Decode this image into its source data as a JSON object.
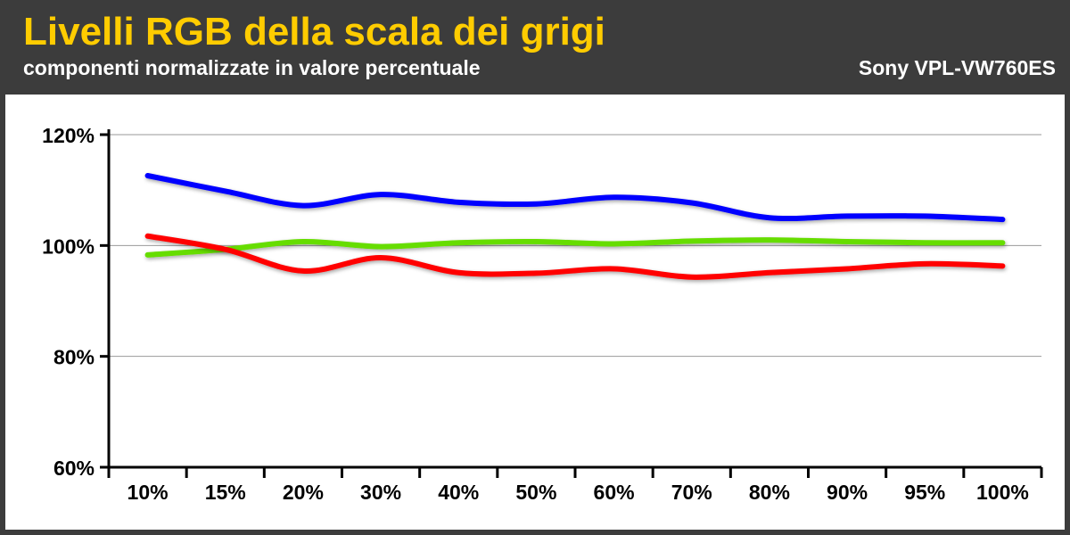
{
  "header": {
    "title": "Livelli RGB della scala dei grigi",
    "subtitle": "componenti normalizzate in valore percentuale",
    "model": "Sony VPL-VW760ES"
  },
  "colors": {
    "title": "#ffcc00",
    "background": "#3c3c3c",
    "red": "#ff0000",
    "green": "#66dd00",
    "blue": "#0000ff"
  },
  "chart_data": {
    "type": "line",
    "title": "Livelli RGB della scala dei grigi",
    "subtitle": "componenti normalizzate in valore percentuale",
    "categories": [
      "10%",
      "15%",
      "20%",
      "30%",
      "40%",
      "50%",
      "60%",
      "70%",
      "80%",
      "90%",
      "95%",
      "100%"
    ],
    "yticks": [
      "60%",
      "80%",
      "100%",
      "120%"
    ],
    "ylim": [
      60,
      120
    ],
    "grid": true,
    "series": [
      {
        "color": "blue",
        "values": [
          112.6,
          109.8,
          107.2,
          109.2,
          107.8,
          107.5,
          108.7,
          107.7,
          105.0,
          105.3,
          105.3,
          104.7
        ]
      },
      {
        "color": "green",
        "values": [
          98.3,
          99.3,
          100.7,
          99.8,
          100.5,
          100.7,
          100.3,
          100.8,
          101.0,
          100.7,
          100.5,
          100.5
        ]
      },
      {
        "color": "red",
        "values": [
          101.7,
          99.3,
          95.4,
          97.8,
          95.1,
          95.0,
          95.8,
          94.3,
          95.1,
          95.8,
          96.7,
          96.3
        ]
      }
    ]
  }
}
